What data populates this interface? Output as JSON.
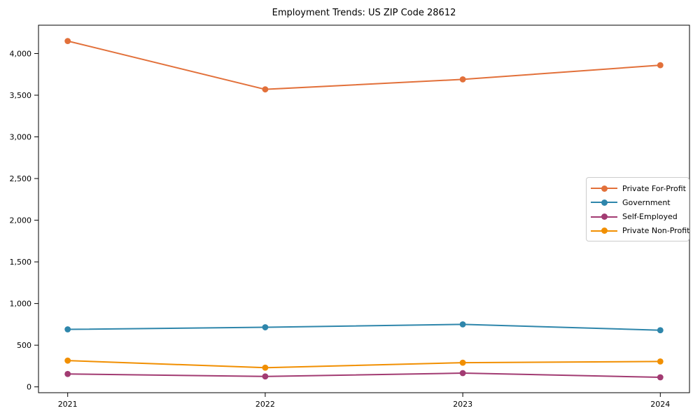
{
  "chart_data": {
    "type": "line",
    "title": "Employment Trends: US ZIP Code 28612",
    "xlabel": "",
    "ylabel": "",
    "x_categories": [
      "2021",
      "2022",
      "2023",
      "2024"
    ],
    "series": [
      {
        "name": "Private For-Profit",
        "color": "#E2703A",
        "values": [
          4150,
          3570,
          3690,
          3860
        ]
      },
      {
        "name": "Government",
        "color": "#2E86AB",
        "values": [
          690,
          715,
          750,
          680
        ]
      },
      {
        "name": "Self-Employed",
        "color": "#A23B72",
        "values": [
          155,
          125,
          165,
          115
        ]
      },
      {
        "name": "Private Non-Profit",
        "color": "#F18F01",
        "values": [
          315,
          230,
          290,
          305
        ]
      }
    ],
    "yticks": [
      0,
      500,
      1000,
      1500,
      2000,
      2500,
      3000,
      3500,
      4000
    ],
    "ytick_labels": [
      "0",
      "500",
      "1,000",
      "1,500",
      "2,000",
      "2,500",
      "3,000",
      "3,500",
      "4,000"
    ],
    "ylim": [
      -70,
      4340
    ],
    "grid": false,
    "legend_position": "center-right",
    "frame_color": "#000000",
    "tick_color": "#000000"
  }
}
